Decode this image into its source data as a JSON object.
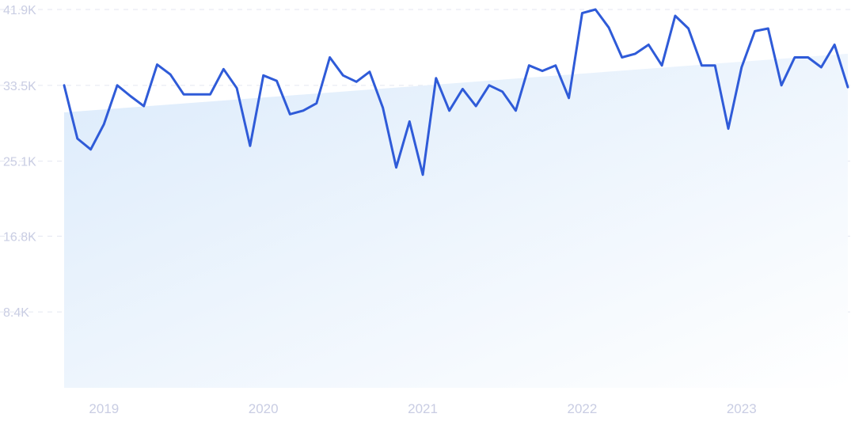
{
  "chart_data": {
    "type": "line",
    "title": "",
    "xlabel": "",
    "ylabel": "",
    "ylim": [
      0,
      41900
    ],
    "y_ticks": [
      "8.4K",
      "16.8K",
      "25.1K",
      "33.5K",
      "41.9K"
    ],
    "y_tick_values": [
      8400,
      16800,
      25100,
      33500,
      41900
    ],
    "x_ticks": [
      "2019",
      "2020",
      "2021",
      "2022",
      "2023"
    ],
    "x_tick_dates": [
      "2019-01",
      "2020-01",
      "2021-01",
      "2022-01",
      "2023-01"
    ],
    "grid": true,
    "legend": "none",
    "colors": {
      "line": "#2f5bd8",
      "trend_fill_start": "#dcebfb",
      "trend_fill_end": "#ffffff",
      "grid": "#e3e6f1",
      "tick_text": "#c9cde3"
    },
    "trend": {
      "x": [
        "2018-10",
        "2023-09"
      ],
      "y": [
        30500,
        37000
      ]
    },
    "x": [
      "2018-10",
      "2018-11",
      "2018-12",
      "2019-01",
      "2019-02",
      "2019-03",
      "2019-04",
      "2019-05",
      "2019-06",
      "2019-07",
      "2019-08",
      "2019-09",
      "2019-10",
      "2019-11",
      "2019-12",
      "2020-01",
      "2020-02",
      "2020-03",
      "2020-04",
      "2020-05",
      "2020-06",
      "2020-07",
      "2020-08",
      "2020-09",
      "2020-10",
      "2020-11",
      "2020-12",
      "2021-01",
      "2021-02",
      "2021-03",
      "2021-04",
      "2021-05",
      "2021-06",
      "2021-07",
      "2021-08",
      "2021-09",
      "2021-10",
      "2021-11",
      "2021-12",
      "2022-01",
      "2022-02",
      "2022-03",
      "2022-04",
      "2022-05",
      "2022-06",
      "2022-07",
      "2022-08",
      "2022-09",
      "2022-10",
      "2022-11",
      "2022-12",
      "2023-01",
      "2023-02",
      "2023-03",
      "2023-04",
      "2023-05",
      "2023-06",
      "2023-07",
      "2023-08",
      "2023-09"
    ],
    "series": [
      {
        "values": [
          33500,
          27600,
          26400,
          29200,
          33500,
          32300,
          31200,
          35800,
          34700,
          32500,
          32500,
          32500,
          35300,
          33200,
          26800,
          34600,
          34000,
          30300,
          30700,
          31500,
          36600,
          34600,
          33900,
          35000,
          31000,
          24400,
          29500,
          23600,
          34300,
          30700,
          33100,
          31200,
          33500,
          32800,
          30700,
          35700,
          35100,
          35700,
          32100,
          41500,
          41900,
          39900,
          36600,
          37000,
          38000,
          35700,
          41200,
          39800,
          35700,
          35700,
          28700,
          35500,
          39500,
          39800,
          33500,
          36600,
          36600,
          35500,
          38000,
          33300
        ]
      }
    ]
  }
}
